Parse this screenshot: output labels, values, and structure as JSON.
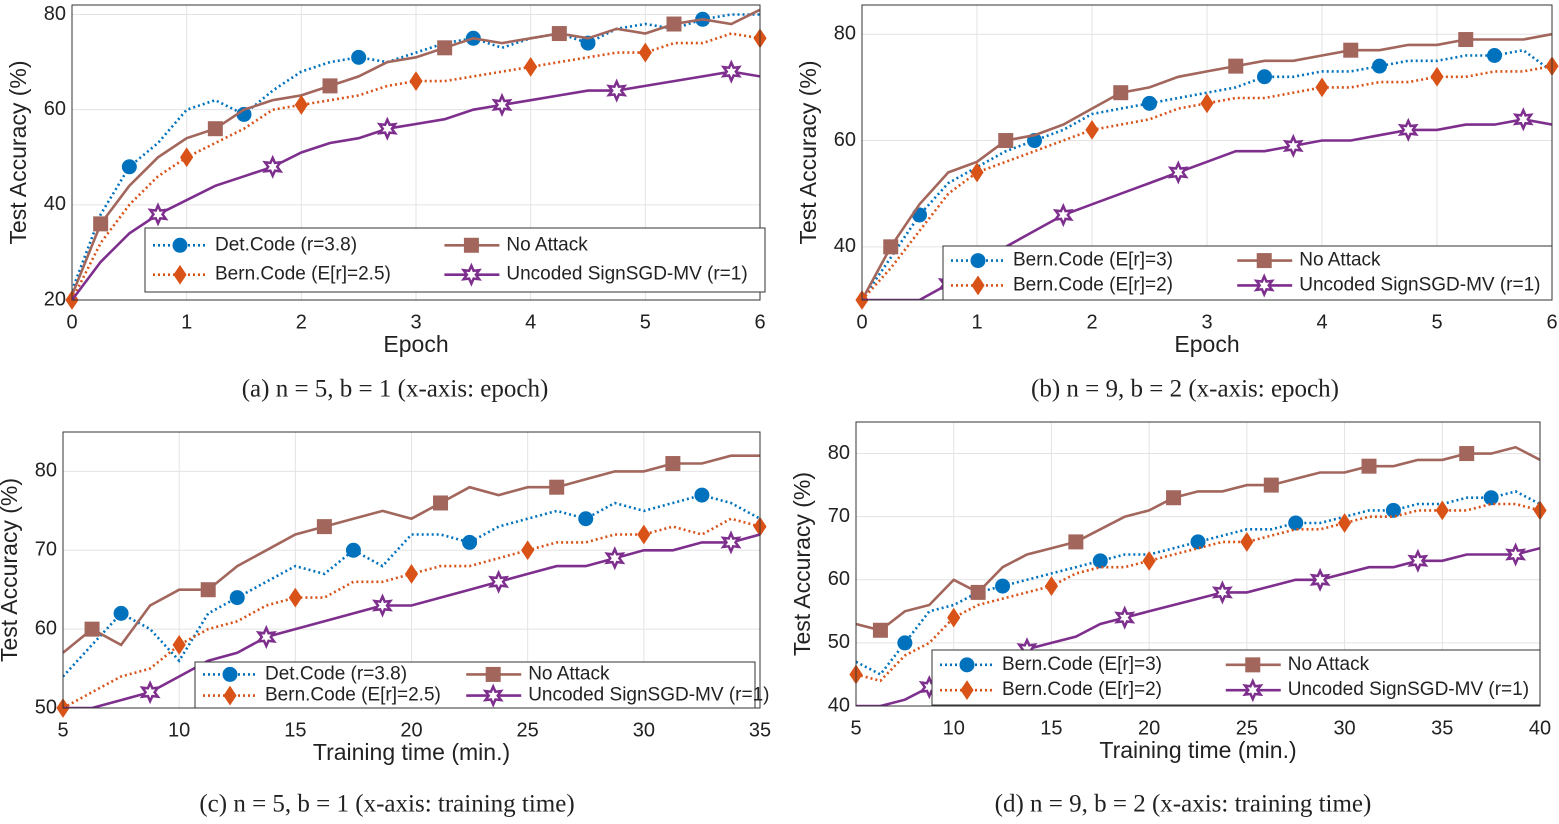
{
  "chart_data": [
    {
      "type": "line",
      "caption": "(a) n = 5, b = 1 (x-axis: epoch)",
      "xlabel": "Epoch",
      "ylabel": "Test Accuracy (%)",
      "xlim": [
        0,
        6
      ],
      "ylim": [
        20,
        82
      ],
      "xticks": [
        0,
        1,
        2,
        3,
        4,
        5,
        6
      ],
      "yticks": [
        20,
        40,
        60,
        80
      ],
      "grid": true,
      "x": [
        0,
        0.25,
        0.5,
        0.75,
        1,
        1.25,
        1.5,
        1.75,
        2,
        2.25,
        2.5,
        2.75,
        3,
        3.25,
        3.5,
        3.75,
        4,
        4.25,
        4.5,
        4.75,
        5,
        5.25,
        5.5,
        5.75,
        6
      ],
      "series": [
        {
          "name": "Det.Code (r=3.8)",
          "color": "#0072bd",
          "style": "dotted",
          "marker": "circle",
          "values": [
            22,
            38,
            48,
            53,
            60,
            62,
            59,
            64,
            68,
            70,
            71,
            70,
            72,
            74,
            75,
            73,
            75,
            76,
            74,
            77,
            78,
            77,
            79,
            80,
            80
          ]
        },
        {
          "name": "No Attack",
          "color": "#a2665c",
          "style": "solid",
          "marker": "square",
          "values": [
            21,
            36,
            44,
            50,
            54,
            56,
            60,
            62,
            63,
            65,
            67,
            70,
            71,
            73,
            75,
            74,
            75,
            76,
            75,
            77,
            76,
            78,
            79,
            78,
            81
          ]
        },
        {
          "name": "Bern.Code (E[r]=2.5)",
          "color": "#d95319",
          "style": "dotted",
          "marker": "diamond",
          "values": [
            20,
            32,
            40,
            46,
            50,
            53,
            56,
            60,
            61,
            62,
            63,
            65,
            66,
            66,
            67,
            68,
            69,
            70,
            71,
            72,
            72,
            74,
            74,
            76,
            75
          ]
        },
        {
          "name": "Uncoded SignSGD-MV (r=1)",
          "color": "#7e2f8e",
          "style": "solid",
          "marker": "star",
          "values": [
            20,
            28,
            34,
            38,
            41,
            44,
            46,
            48,
            51,
            53,
            54,
            56,
            57,
            58,
            60,
            61,
            62,
            63,
            64,
            64,
            65,
            66,
            67,
            68,
            67
          ]
        }
      ]
    },
    {
      "type": "line",
      "caption": "(b) n = 9, b = 2 (x-axis: epoch)",
      "xlabel": "Epoch",
      "ylabel": "Test Accuracy (%)",
      "xlim": [
        0,
        6
      ],
      "ylim": [
        30,
        85.5
      ],
      "xticks": [
        0,
        1,
        2,
        3,
        4,
        5,
        6
      ],
      "yticks": [
        40,
        60,
        80
      ],
      "grid": true,
      "x": [
        0,
        0.25,
        0.5,
        0.75,
        1,
        1.25,
        1.5,
        1.75,
        2,
        2.25,
        2.5,
        2.75,
        3,
        3.25,
        3.5,
        3.75,
        4,
        4.25,
        4.5,
        4.75,
        5,
        5.25,
        5.5,
        5.75,
        6
      ],
      "series": [
        {
          "name": "Bern.Code (E[r]=3)",
          "color": "#0072bd",
          "style": "dotted",
          "marker": "circle",
          "values": [
            30,
            38,
            46,
            52,
            55,
            58,
            60,
            62,
            65,
            66,
            67,
            68,
            69,
            70,
            72,
            72,
            73,
            73,
            74,
            75,
            75,
            76,
            76,
            77,
            73
          ]
        },
        {
          "name": "No Attack",
          "color": "#a2665c",
          "style": "solid",
          "marker": "square",
          "values": [
            30,
            40,
            48,
            54,
            56,
            60,
            61,
            63,
            66,
            69,
            70,
            72,
            73,
            74,
            75,
            75,
            76,
            77,
            77,
            78,
            78,
            79,
            79,
            79,
            80
          ]
        },
        {
          "name": "Bern.Code (E[r]=2)",
          "color": "#d95319",
          "style": "dotted",
          "marker": "diamond",
          "values": [
            30,
            36,
            43,
            50,
            54,
            56,
            58,
            60,
            62,
            63,
            64,
            66,
            67,
            68,
            68,
            69,
            70,
            70,
            71,
            71,
            72,
            72,
            73,
            73,
            74
          ]
        },
        {
          "name": "Uncoded SignSGD-MV (r=1)",
          "color": "#7e2f8e",
          "style": "solid",
          "marker": "star",
          "values": [
            30,
            30,
            30,
            33,
            37,
            40,
            43,
            46,
            48,
            50,
            52,
            54,
            56,
            58,
            58,
            59,
            60,
            60,
            61,
            62,
            62,
            63,
            63,
            64,
            63
          ]
        }
      ]
    },
    {
      "type": "line",
      "caption": "(c) n = 5, b = 1 (x-axis: training time)",
      "xlabel": "Training time (min.)",
      "ylabel": "Test Accuracy (%)",
      "xlim": [
        5,
        35
      ],
      "ylim": [
        50,
        85
      ],
      "xticks": [
        5,
        10,
        15,
        20,
        25,
        30,
        35
      ],
      "yticks": [
        50,
        60,
        70,
        80
      ],
      "grid": true,
      "x": [
        5,
        6.25,
        7.5,
        8.75,
        10,
        11.25,
        12.5,
        13.75,
        15,
        16.25,
        17.5,
        18.75,
        20,
        21.25,
        22.5,
        23.75,
        25,
        26.25,
        27.5,
        28.75,
        30,
        31.25,
        32.5,
        33.75,
        35
      ],
      "series": [
        {
          "name": "Det.Code (r=3.8)",
          "color": "#0072bd",
          "style": "dotted",
          "marker": "circle",
          "values": [
            54,
            58,
            62,
            60,
            56,
            62,
            64,
            66,
            68,
            67,
            70,
            68,
            72,
            72,
            71,
            73,
            74,
            75,
            74,
            76,
            75,
            76,
            77,
            76,
            74
          ]
        },
        {
          "name": "No Attack",
          "color": "#a2665c",
          "style": "solid",
          "marker": "square",
          "values": [
            57,
            60,
            58,
            63,
            65,
            65,
            68,
            70,
            72,
            73,
            74,
            75,
            74,
            76,
            78,
            77,
            78,
            78,
            79,
            80,
            80,
            81,
            81,
            82,
            82
          ]
        },
        {
          "name": "Bern.Code (E[r]=2.5)",
          "color": "#d95319",
          "style": "dotted",
          "marker": "diamond",
          "values": [
            50,
            52,
            54,
            55,
            58,
            60,
            61,
            63,
            64,
            64,
            66,
            66,
            67,
            68,
            68,
            69,
            70,
            71,
            71,
            72,
            72,
            73,
            72,
            74,
            73
          ]
        },
        {
          "name": "Uncoded SignSGD-MV (r=1)",
          "color": "#7e2f8e",
          "style": "solid",
          "marker": "star",
          "values": [
            50,
            50,
            51,
            52,
            54,
            56,
            57,
            59,
            60,
            61,
            62,
            63,
            63,
            64,
            65,
            66,
            67,
            68,
            68,
            69,
            70,
            70,
            71,
            71,
            72
          ]
        }
      ]
    },
    {
      "type": "line",
      "caption": "(d) n = 9, b = 2 (x-axis: training time)",
      "xlabel": "Training time (min.)",
      "ylabel": "Test Accuracy (%)",
      "xlim": [
        5,
        40
      ],
      "ylim": [
        40,
        85
      ],
      "xticks": [
        5,
        10,
        15,
        20,
        25,
        30,
        35,
        40
      ],
      "yticks": [
        40,
        50,
        60,
        70,
        80
      ],
      "grid": true,
      "x": [
        5,
        6.25,
        7.5,
        8.75,
        10,
        11.25,
        12.5,
        13.75,
        15,
        16.25,
        17.5,
        18.75,
        20,
        21.25,
        22.5,
        23.75,
        25,
        26.25,
        27.5,
        28.75,
        30,
        31.25,
        32.5,
        33.75,
        35,
        36.25,
        37.5,
        38.75,
        40
      ],
      "series": [
        {
          "name": "Bern.Code (E[r]=3)",
          "color": "#0072bd",
          "style": "dotted",
          "marker": "circle",
          "values": [
            47,
            45,
            50,
            55,
            56,
            58,
            59,
            60,
            61,
            62,
            63,
            64,
            64,
            65,
            66,
            67,
            68,
            68,
            69,
            69,
            70,
            71,
            71,
            72,
            72,
            73,
            73,
            74,
            72
          ]
        },
        {
          "name": "No Attack",
          "color": "#a2665c",
          "style": "solid",
          "marker": "square",
          "values": [
            53,
            52,
            55,
            56,
            60,
            58,
            62,
            64,
            65,
            66,
            68,
            70,
            71,
            73,
            74,
            74,
            75,
            75,
            76,
            77,
            77,
            78,
            78,
            79,
            79,
            80,
            80,
            81,
            79
          ]
        },
        {
          "name": "Bern.Code (E[r]=2)",
          "color": "#d95319",
          "style": "dotted",
          "marker": "diamond",
          "values": [
            45,
            44,
            48,
            50,
            54,
            56,
            57,
            58,
            59,
            61,
            62,
            62,
            63,
            64,
            65,
            66,
            66,
            67,
            68,
            68,
            69,
            70,
            70,
            71,
            71,
            71,
            72,
            72,
            71
          ]
        },
        {
          "name": "Uncoded SignSGD-MV (r=1)",
          "color": "#7e2f8e",
          "style": "solid",
          "marker": "star",
          "values": [
            40,
            40,
            41,
            43,
            45,
            46,
            48,
            49,
            50,
            51,
            53,
            54,
            55,
            56,
            57,
            58,
            58,
            59,
            60,
            60,
            61,
            62,
            62,
            63,
            63,
            64,
            64,
            64,
            65
          ]
        }
      ]
    }
  ]
}
